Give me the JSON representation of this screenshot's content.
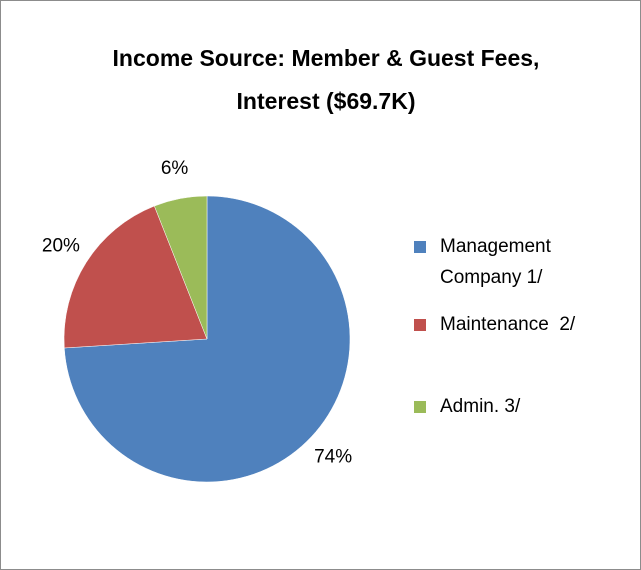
{
  "chart_data": {
    "type": "pie",
    "title": "Income Source: Member & Guest Fees, Interest ($69.7K)",
    "categories": [
      "Management Company 1/",
      "Maintenance  2/",
      "Admin. 3/"
    ],
    "values": [
      74,
      20,
      6
    ],
    "value_labels": [
      "74%",
      "20%",
      "6%"
    ],
    "colors": [
      "#4f81bd",
      "#c0504d",
      "#9bbb59"
    ],
    "legend": "right"
  }
}
